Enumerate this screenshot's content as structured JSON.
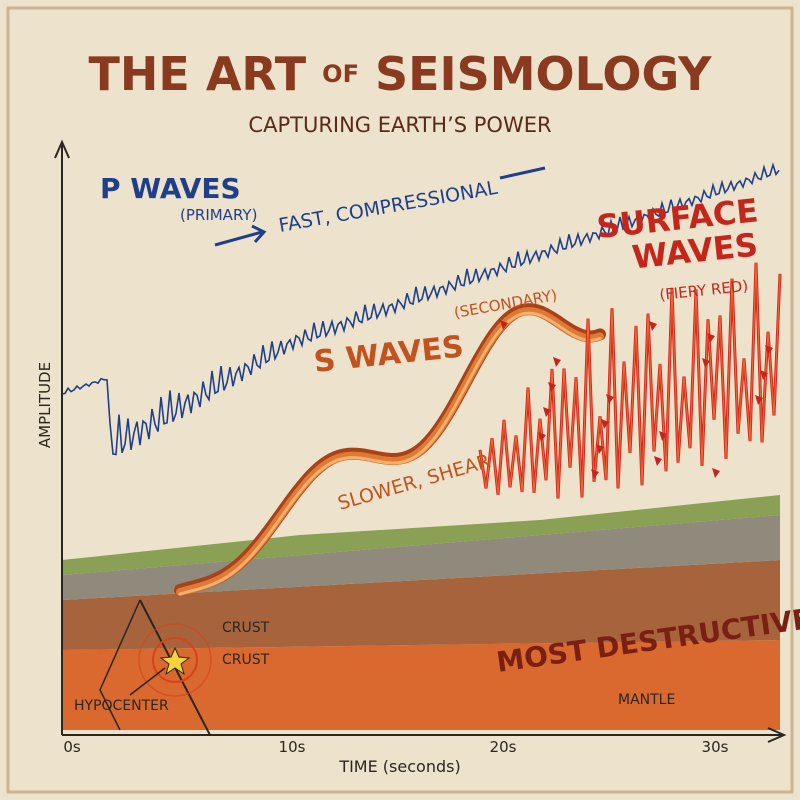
{
  "header": {
    "title_parts": [
      "THE ART",
      "OF",
      "SEISMOLOGY"
    ],
    "subtitle": "CAPTURING EARTH’S POWER"
  },
  "p_waves": {
    "label": "P WAVES",
    "note": "(PRIMARY)",
    "description": "FAST, COMPRESSIONAL"
  },
  "s_waves": {
    "label": "S WAVES",
    "note": "(SECONDARY)",
    "description": "SLOWER, SHEAR"
  },
  "surface_waves": {
    "label_lines": [
      "SURFACE",
      "WAVES"
    ],
    "note": "(FIERY RED)",
    "description": "MOST DESTRUCTIVE"
  },
  "layers": {
    "crust_upper": "CRUST",
    "crust_lower": "CRUST",
    "hypocenter": "HYPOCENTER",
    "mantle": "MANTLE"
  },
  "axes": {
    "y_label": "AMPLITUDE",
    "x_label": "TIME (seconds)",
    "x_ticks": [
      "0s",
      "10s",
      "20s",
      "30s"
    ]
  }
}
